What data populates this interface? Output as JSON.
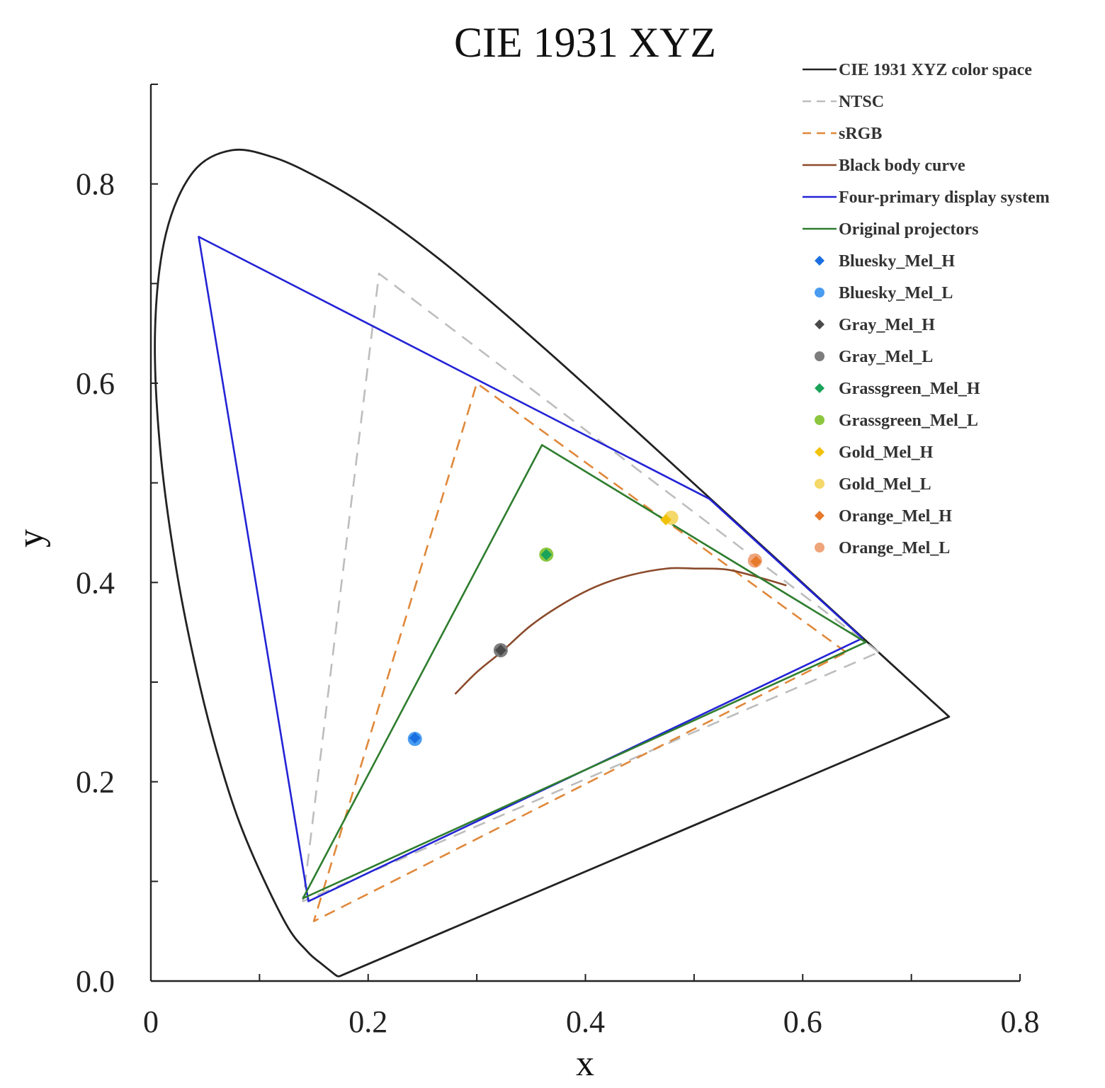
{
  "chart_data": {
    "type": "scatter",
    "title": "CIE 1931 XYZ",
    "xlabel": "x",
    "ylabel": "y",
    "xlim": [
      0,
      0.8
    ],
    "ylim": [
      0,
      0.9
    ],
    "xticks": [
      0,
      0.2,
      0.4,
      0.6,
      0.8
    ],
    "xtick_labels": [
      "0",
      "0.2",
      "0.4",
      "0.6",
      "0.8"
    ],
    "yticks": [
      0.0,
      0.2,
      0.4,
      0.6,
      0.8
    ],
    "ytick_labels": [
      "0.0",
      "0.2",
      "0.4",
      "0.6",
      "0.8"
    ],
    "grid": false,
    "legend_position": "top-right",
    "series": [
      {
        "name": "CIE 1931 XYZ color space",
        "kind": "line",
        "style": "solid",
        "color": "#222222",
        "closed": true,
        "points": [
          [
            0.1741,
            0.005
          ],
          [
            0.1738,
            0.0049
          ],
          [
            0.1732,
            0.0048
          ],
          [
            0.1726,
            0.0048
          ],
          [
            0.1714,
            0.0051
          ],
          [
            0.1689,
            0.0069
          ],
          [
            0.1644,
            0.0109
          ],
          [
            0.1566,
            0.0177
          ],
          [
            0.144,
            0.0297
          ],
          [
            0.1241,
            0.0578
          ],
          [
            0.0913,
            0.1327
          ],
          [
            0.0687,
            0.2007
          ],
          [
            0.0454,
            0.295
          ],
          [
            0.0235,
            0.4127
          ],
          [
            0.0082,
            0.5384
          ],
          [
            0.0039,
            0.6548
          ],
          [
            0.0139,
            0.7502
          ],
          [
            0.0389,
            0.812
          ],
          [
            0.0743,
            0.8338
          ],
          [
            0.1142,
            0.8262
          ],
          [
            0.1547,
            0.8059
          ],
          [
            0.1929,
            0.7816
          ],
          [
            0.2296,
            0.7543
          ],
          [
            0.2658,
            0.7243
          ],
          [
            0.3016,
            0.6923
          ],
          [
            0.3373,
            0.6589
          ],
          [
            0.3731,
            0.6245
          ],
          [
            0.4087,
            0.5896
          ],
          [
            0.4441,
            0.5547
          ],
          [
            0.4788,
            0.5202
          ],
          [
            0.5125,
            0.4866
          ],
          [
            0.5448,
            0.4544
          ],
          [
            0.5752,
            0.4242
          ],
          [
            0.6029,
            0.3965
          ],
          [
            0.627,
            0.3725
          ],
          [
            0.6482,
            0.3514
          ],
          [
            0.6658,
            0.334
          ],
          [
            0.6801,
            0.3197
          ],
          [
            0.6915,
            0.3083
          ],
          [
            0.7006,
            0.2993
          ],
          [
            0.7079,
            0.292
          ],
          [
            0.714,
            0.2859
          ],
          [
            0.719,
            0.2809
          ],
          [
            0.723,
            0.277
          ],
          [
            0.726,
            0.274
          ],
          [
            0.7283,
            0.2717
          ],
          [
            0.73,
            0.27
          ],
          [
            0.7311,
            0.2689
          ],
          [
            0.732,
            0.268
          ],
          [
            0.7327,
            0.2673
          ],
          [
            0.7334,
            0.2666
          ],
          [
            0.734,
            0.266
          ],
          [
            0.7344,
            0.2656
          ],
          [
            0.7346,
            0.2654
          ],
          [
            0.7347,
            0.2653
          ]
        ]
      },
      {
        "name": "NTSC",
        "kind": "line",
        "style": "dashed",
        "color": "#bdbdbd",
        "closed": true,
        "points": [
          [
            0.67,
            0.33
          ],
          [
            0.21,
            0.71
          ],
          [
            0.14,
            0.08
          ]
        ]
      },
      {
        "name": "sRGB",
        "kind": "line",
        "style": "dashed",
        "color": "#e0883a",
        "closed": true,
        "points": [
          [
            0.64,
            0.33
          ],
          [
            0.3,
            0.6
          ],
          [
            0.15,
            0.06
          ]
        ]
      },
      {
        "name": "Black body curve",
        "kind": "line",
        "style": "solid",
        "color": "#8b4a2b",
        "closed": false,
        "points": [
          [
            0.28,
            0.288
          ],
          [
            0.3,
            0.31
          ],
          [
            0.3229,
            0.3306
          ],
          [
            0.35,
            0.357
          ],
          [
            0.38,
            0.379
          ],
          [
            0.41,
            0.396
          ],
          [
            0.44,
            0.407
          ],
          [
            0.475,
            0.414
          ],
          [
            0.5,
            0.414
          ],
          [
            0.53,
            0.413
          ],
          [
            0.56,
            0.405
          ],
          [
            0.585,
            0.397
          ]
        ]
      },
      {
        "name": "Four-primary display system",
        "kind": "line",
        "style": "solid",
        "color": "#2323d6",
        "closed": true,
        "points": [
          [
            0.655,
            0.344
          ],
          [
            0.514,
            0.484
          ],
          [
            0.044,
            0.747
          ],
          [
            0.145,
            0.08
          ]
        ]
      },
      {
        "name": "Original projectors",
        "kind": "line",
        "style": "solid",
        "color": "#2e7d2e",
        "closed": true,
        "points": [
          [
            0.658,
            0.34
          ],
          [
            0.36,
            0.538
          ],
          [
            0.14,
            0.083
          ]
        ]
      },
      {
        "name": "Bluesky_Mel_H",
        "kind": "point",
        "color": "#1a6fe0",
        "marker": "diamond",
        "points": [
          [
            0.243,
            0.244
          ]
        ]
      },
      {
        "name": "Bluesky_Mel_L",
        "kind": "point",
        "color": "#4a9cf0",
        "marker": "circle",
        "points": [
          [
            0.243,
            0.243
          ]
        ]
      },
      {
        "name": "Gray_Mel_H",
        "kind": "point",
        "color": "#4a4a4a",
        "marker": "diamond",
        "points": [
          [
            0.322,
            0.332
          ]
        ]
      },
      {
        "name": "Gray_Mel_L",
        "kind": "point",
        "color": "#7d7d7d",
        "marker": "circle",
        "points": [
          [
            0.322,
            0.332
          ]
        ]
      },
      {
        "name": "Grassgreen_Mel_H",
        "kind": "point",
        "color": "#1aa35a",
        "marker": "diamond",
        "points": [
          [
            0.364,
            0.428
          ]
        ]
      },
      {
        "name": "Grassgreen_Mel_L",
        "kind": "point",
        "color": "#8cc63f",
        "marker": "circle",
        "points": [
          [
            0.364,
            0.428
          ]
        ]
      },
      {
        "name": "Gold_Mel_H",
        "kind": "point",
        "color": "#f2c20a",
        "marker": "diamond",
        "points": [
          [
            0.474,
            0.463
          ]
        ]
      },
      {
        "name": "Gold_Mel_L",
        "kind": "point",
        "color": "#f5d86a",
        "marker": "circle",
        "points": [
          [
            0.479,
            0.465
          ]
        ]
      },
      {
        "name": "Orange_Mel_H",
        "kind": "point",
        "color": "#e6792b",
        "marker": "diamond",
        "points": [
          [
            0.557,
            0.421
          ]
        ]
      },
      {
        "name": "Orange_Mel_L",
        "kind": "point",
        "color": "#f0a47a",
        "marker": "circle",
        "points": [
          [
            0.556,
            0.422
          ]
        ]
      }
    ]
  }
}
